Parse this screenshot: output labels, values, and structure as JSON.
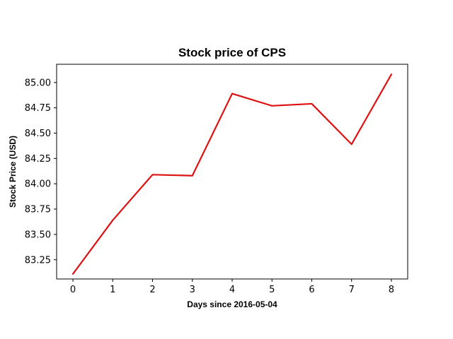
{
  "chart_data": {
    "type": "line",
    "title": "Stock price of CPS",
    "xlabel": "Days since 2016-05-04",
    "ylabel": "Stock Price (USD)",
    "x": [
      0,
      1,
      2,
      3,
      4,
      5,
      6,
      7,
      8
    ],
    "series": [
      {
        "values": [
          83.11,
          83.64,
          84.09,
          84.08,
          84.89,
          84.77,
          84.79,
          84.39,
          85.08
        ],
        "color": "#dd1111"
      }
    ],
    "xlim": [
      -0.41,
      8.41
    ],
    "ylim": [
      83.06,
      85.18
    ],
    "xticks": [
      0,
      1,
      2,
      3,
      4,
      5,
      6,
      7,
      8
    ],
    "xtick_labels": [
      "0",
      "1",
      "2",
      "3",
      "4",
      "5",
      "6",
      "7",
      "8"
    ],
    "yticks": [
      83.25,
      83.5,
      83.75,
      84.0,
      84.25,
      84.5,
      84.75,
      85.0
    ],
    "ytick_labels": [
      "83.25",
      "83.50",
      "83.75",
      "84.00",
      "84.25",
      "84.50",
      "84.75",
      "85.00"
    ],
    "grid": false,
    "legend": false
  }
}
